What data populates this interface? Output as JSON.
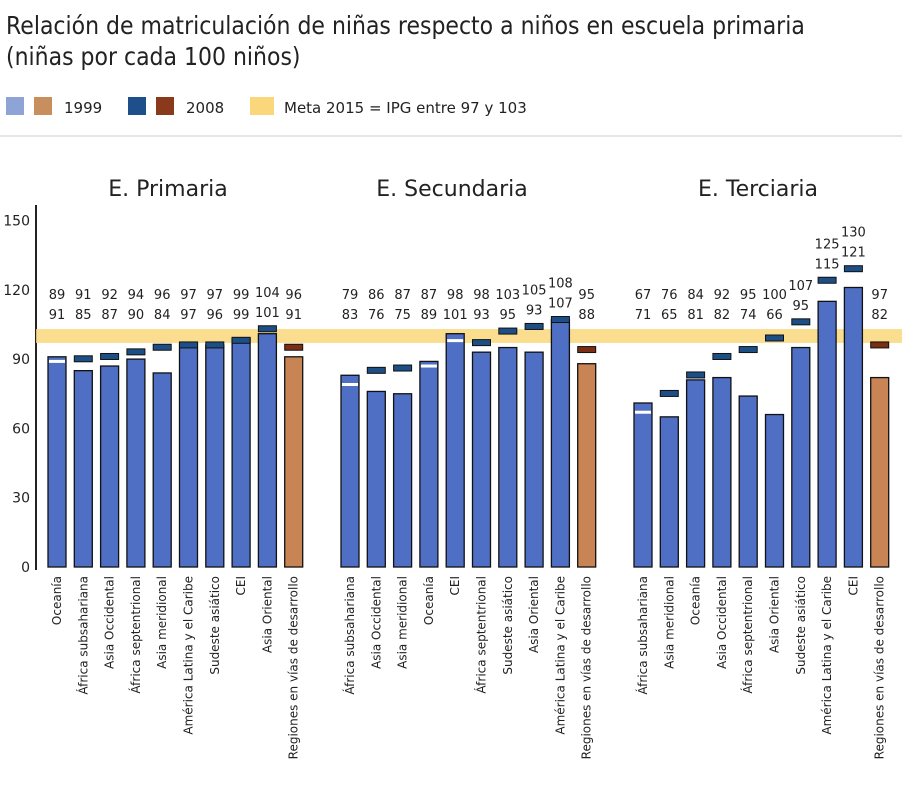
{
  "chart_data": {
    "type": "bar",
    "title": "Relación de matriculación de niñas respecto a niños en escuela primaria",
    "subtitle": "(niñas por cada 100 niños)",
    "legend": {
      "position": "top-left",
      "entries": [
        {
          "label": "1999",
          "colors": [
            "#8fa4d6",
            "#c98e5e"
          ]
        },
        {
          "label": "2008",
          "colors": [
            "#1f4f8a",
            "#8a3a1a"
          ]
        },
        {
          "label": "Meta 2015 = IPG entre 97 y 103",
          "color": "#f9d77a"
        }
      ]
    },
    "ylim": [
      0,
      150
    ],
    "yticks": [
      0,
      30,
      60,
      90,
      120,
      150
    ],
    "target_band": [
      97,
      103
    ],
    "colors": {
      "bar_1999": "#4f6fc4",
      "bar_1999_dev": "#c98455",
      "marker_2008": "#1d4f86",
      "marker_2008_dev": "#7b2e12",
      "band": "#f9d77a"
    },
    "panels": [
      {
        "title": "E. Primaria",
        "categories": [
          "Oceanía",
          "África subsahariana",
          "Asia Occidental",
          "África septentrional",
          "Asia meridional",
          "América Latina y el Caribe",
          "Sudeste asiático",
          "CEI",
          "Asia Oriental",
          "Regiones en vías de desarrollo"
        ],
        "y2008": [
          89,
          91,
          92,
          94,
          96,
          97,
          97,
          99,
          104,
          96
        ],
        "y1999": [
          91,
          85,
          87,
          90,
          84,
          97,
          96,
          99,
          101,
          91
        ]
      },
      {
        "title": "E. Secundaria",
        "categories": [
          "África subsahariana",
          "Asia Occidental",
          "Asia meridional",
          "Oceanía",
          "CEI",
          "África septentrional",
          "Sudeste asiático",
          "Asia Oriental",
          "América Latina y el Caribe",
          "Regiones en vías de desarrollo"
        ],
        "y2008": [
          79,
          86,
          87,
          87,
          98,
          98,
          103,
          105,
          108,
          95
        ],
        "y1999": [
          83,
          76,
          75,
          89,
          101,
          93,
          95,
          93,
          107,
          88
        ]
      },
      {
        "title": "E. Terciaria",
        "categories": [
          "África subsahariana",
          "Asia meridional",
          "Oceanía",
          "Asia Occidental",
          "África septentrional",
          "Asia Oriental",
          "Sudeste asiático",
          "América Latina y el Caribe",
          "CEI",
          "Regiones en vías de desarrollo"
        ],
        "y2008": [
          67,
          76,
          84,
          92,
          95,
          100,
          107,
          125,
          130,
          97
        ],
        "y1999": [
          71,
          65,
          81,
          82,
          74,
          66,
          95,
          115,
          121,
          82
        ]
      }
    ]
  }
}
